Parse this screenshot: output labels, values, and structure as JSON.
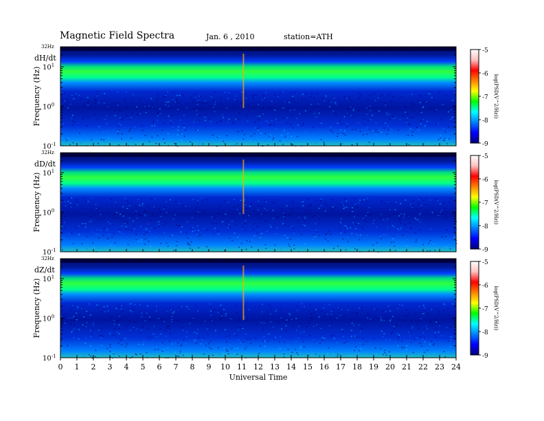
{
  "header": {
    "title": "Magnetic  Field  Spectra",
    "date": "Jan. 6  , 2010",
    "station": "station=ATH"
  },
  "chart_data": {
    "type": "heatmap",
    "xlabel": "Universal Time",
    "x_ticks": [
      "0",
      "1",
      "2",
      "3",
      "4",
      "5",
      "6",
      "7",
      "8",
      "9",
      "10",
      "11",
      "12",
      "13",
      "14",
      "15",
      "16",
      "17",
      "18",
      "19",
      "20",
      "21",
      "22",
      "23",
      "24"
    ],
    "xlim": [
      0,
      24
    ],
    "ylabel": "Frequency  (Hz)",
    "yscale": "log",
    "y_ticks": [
      {
        "base": "10",
        "exp": "1",
        "value": 10
      },
      {
        "base": "10",
        "exp": "0",
        "value": 1
      },
      {
        "base": "10",
        "exp": "-1",
        "value": 0.1
      }
    ],
    "ytop_label": "32Hz",
    "ylim": [
      0.1,
      32
    ],
    "colorbar": {
      "label": "log(PSD(V^2/Hz))",
      "ticks": [
        "-5",
        "-6",
        "-7",
        "-8",
        "-9"
      ],
      "range": [
        -9,
        -5
      ],
      "colormap": [
        "#00007a",
        "#0000ff",
        "#0080ff",
        "#00ffff",
        "#00ff00",
        "#ffff00",
        "#ff8000",
        "#ff0000",
        "#ffc0c0",
        "#ffffff"
      ]
    },
    "panels": [
      {
        "name": "dH/dt"
      },
      {
        "name": "dD/dt"
      },
      {
        "name": "dZ/dt"
      }
    ]
  }
}
